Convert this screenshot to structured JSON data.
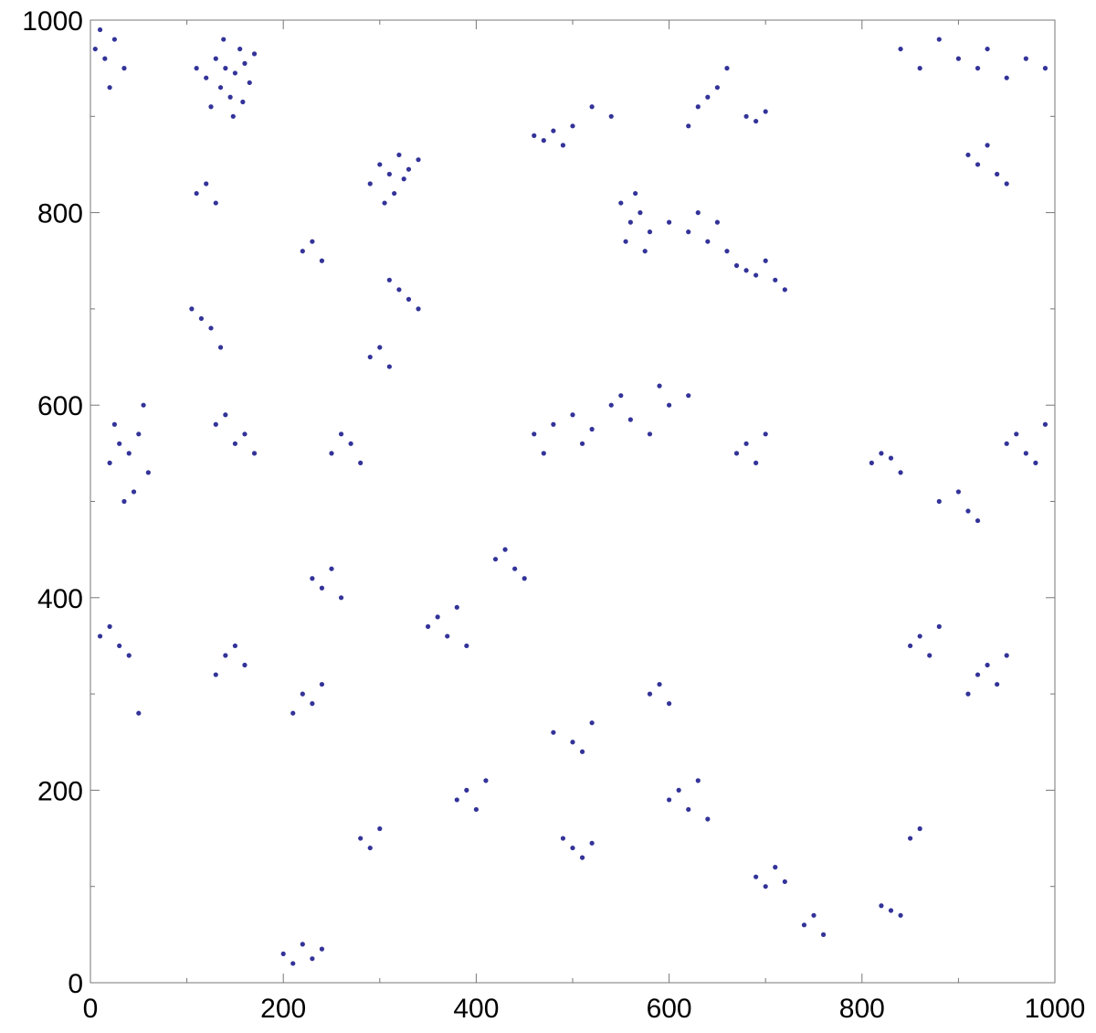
{
  "chart_data": {
    "type": "scatter",
    "color": "#333399",
    "xlim": [
      0,
      1000
    ],
    "ylim": [
      0,
      1000
    ],
    "xticks": [
      0,
      200,
      400,
      600,
      800,
      1000
    ],
    "yticks": [
      0,
      200,
      400,
      600,
      800,
      1000
    ],
    "xminor_ticks": [
      100,
      300,
      500,
      700,
      900
    ],
    "yminor_ticks": [
      100,
      300,
      500,
      700,
      900
    ],
    "x": [
      120,
      130,
      140,
      150,
      160,
      145,
      135,
      155,
      125,
      165,
      170,
      110,
      148,
      138,
      158,
      5,
      15,
      25,
      35,
      20,
      10,
      290,
      300,
      310,
      320,
      330,
      315,
      305,
      325,
      340,
      550,
      560,
      570,
      580,
      575,
      565,
      555,
      620,
      640,
      660,
      680,
      700,
      710,
      720,
      650,
      670,
      690,
      600,
      630,
      460,
      470,
      480,
      490,
      500,
      520,
      540,
      680,
      690,
      700,
      640,
      650,
      630,
      620,
      660,
      840,
      860,
      880,
      900,
      920,
      950,
      970,
      990,
      930,
      910,
      920,
      930,
      940,
      950,
      110,
      120,
      130,
      105,
      115,
      125,
      135,
      220,
      230,
      240,
      320,
      330,
      340,
      310,
      290,
      300,
      310,
      270,
      260,
      250,
      280,
      20,
      30,
      40,
      50,
      60,
      45,
      35,
      25,
      55,
      130,
      150,
      170,
      160,
      140,
      460,
      480,
      500,
      520,
      540,
      560,
      580,
      600,
      620,
      470,
      510,
      550,
      590,
      670,
      680,
      690,
      700,
      810,
      820,
      830,
      840,
      950,
      960,
      970,
      980,
      990,
      880,
      900,
      910,
      920,
      230,
      240,
      250,
      260,
      140,
      150,
      130,
      160,
      220,
      230,
      240,
      210,
      350,
      360,
      370,
      380,
      390,
      420,
      430,
      440,
      450,
      10,
      20,
      30,
      40,
      50,
      850,
      860,
      870,
      880,
      920,
      930,
      940,
      950,
      910,
      480,
      500,
      510,
      520,
      580,
      590,
      600,
      600,
      610,
      620,
      630,
      640,
      690,
      700,
      710,
      720,
      740,
      750,
      760,
      820,
      830,
      840,
      850,
      860,
      200,
      210,
      220,
      230,
      240,
      280,
      290,
      300,
      380,
      390,
      400,
      410,
      490,
      500,
      510,
      520
    ],
    "values": [
      940,
      960,
      950,
      945,
      955,
      920,
      930,
      970,
      910,
      935,
      965,
      950,
      900,
      980,
      915,
      970,
      960,
      980,
      950,
      930,
      990,
      830,
      850,
      840,
      860,
      845,
      820,
      810,
      835,
      855,
      810,
      790,
      800,
      780,
      760,
      820,
      770,
      780,
      770,
      760,
      740,
      750,
      730,
      720,
      790,
      745,
      735,
      790,
      800,
      880,
      875,
      885,
      870,
      890,
      910,
      900,
      900,
      895,
      905,
      920,
      930,
      910,
      890,
      950,
      970,
      950,
      980,
      960,
      950,
      940,
      960,
      950,
      970,
      860,
      850,
      870,
      840,
      830,
      820,
      830,
      810,
      700,
      690,
      680,
      660,
      760,
      770,
      750,
      720,
      710,
      700,
      730,
      650,
      660,
      640,
      560,
      570,
      550,
      540,
      540,
      560,
      550,
      570,
      530,
      510,
      500,
      580,
      600,
      580,
      560,
      550,
      570,
      590,
      570,
      580,
      590,
      575,
      600,
      585,
      570,
      600,
      610,
      550,
      560,
      610,
      620,
      550,
      560,
      540,
      570,
      540,
      550,
      545,
      530,
      560,
      570,
      550,
      540,
      580,
      500,
      510,
      490,
      480,
      420,
      410,
      430,
      400,
      340,
      350,
      320,
      330,
      300,
      290,
      310,
      280,
      370,
      380,
      360,
      390,
      350,
      440,
      450,
      430,
      420,
      360,
      370,
      350,
      340,
      280,
      350,
      360,
      340,
      370,
      320,
      330,
      310,
      340,
      300,
      260,
      250,
      240,
      270,
      300,
      310,
      290,
      190,
      200,
      180,
      210,
      170,
      110,
      100,
      120,
      105,
      60,
      70,
      50,
      80,
      75,
      70,
      150,
      160,
      30,
      20,
      40,
      25,
      35,
      150,
      140,
      160,
      190,
      200,
      180,
      210,
      150,
      140,
      130,
      145
    ]
  }
}
